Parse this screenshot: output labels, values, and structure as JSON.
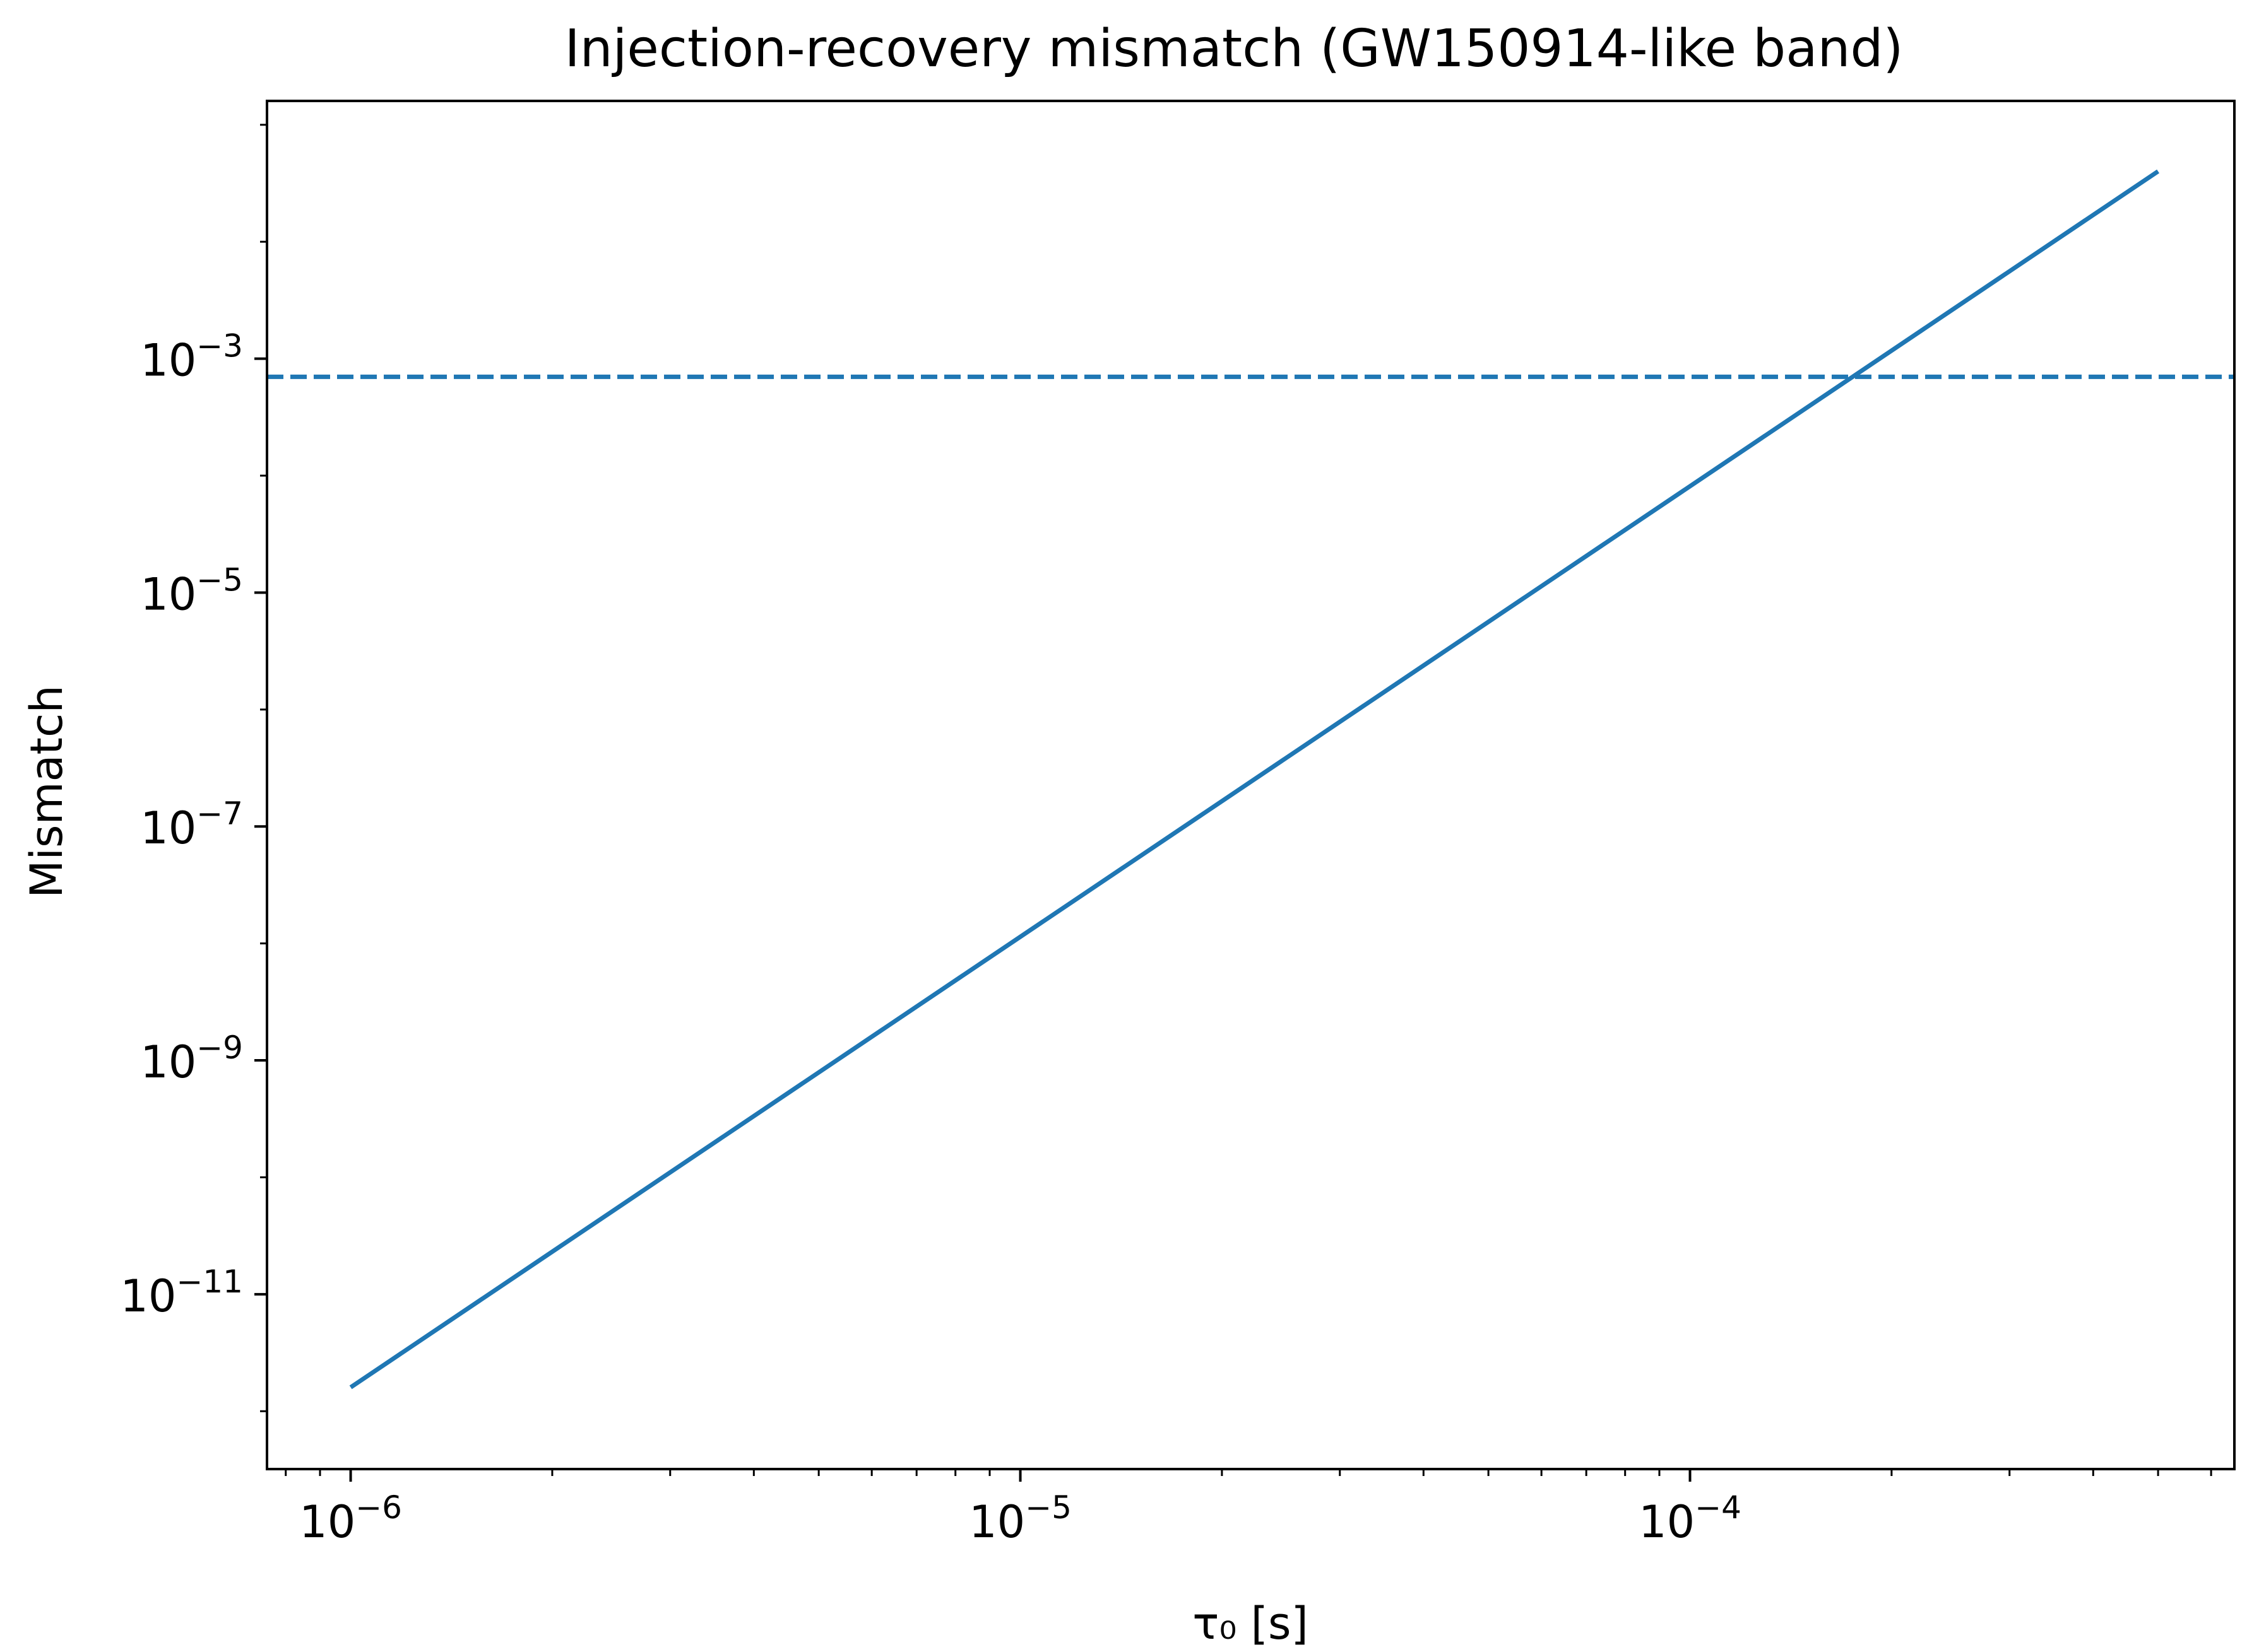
{
  "chart_data": {
    "type": "line",
    "title": "Injection-recovery mismatch (GW150914-like band)",
    "xlabel": "τ₀ [s]",
    "ylabel": "Mismatch",
    "xscale": "log",
    "yscale": "log",
    "xlim": [
      7.5e-07,
      0.00065
    ],
    "ylim": [
      3.2e-13,
      0.16
    ],
    "xticks": [
      {
        "value": 1e-06,
        "base": "10",
        "exp": "−6"
      },
      {
        "value": 1e-05,
        "base": "10",
        "exp": "−5"
      },
      {
        "value": 0.0001,
        "base": "10",
        "exp": "−4"
      }
    ],
    "yticks": [
      {
        "value": 1e-11,
        "base": "10",
        "exp": "−11"
      },
      {
        "value": 1e-09,
        "base": "10",
        "exp": "−9"
      },
      {
        "value": 1e-07,
        "base": "10",
        "exp": "−7"
      },
      {
        "value": 1e-05,
        "base": "10",
        "exp": "−5"
      },
      {
        "value": 0.001,
        "base": "10",
        "exp": "−3"
      }
    ],
    "grid": false,
    "legend": "none",
    "series": [
      {
        "style": "solid",
        "color": "#1f77b4",
        "x": [
          1e-06,
          0.0005
        ],
        "y": [
          1.6e-12,
          0.04
        ]
      }
    ],
    "hlines": [
      {
        "y": 0.0007,
        "style": "dashed",
        "color": "#1f77b4"
      }
    ]
  }
}
